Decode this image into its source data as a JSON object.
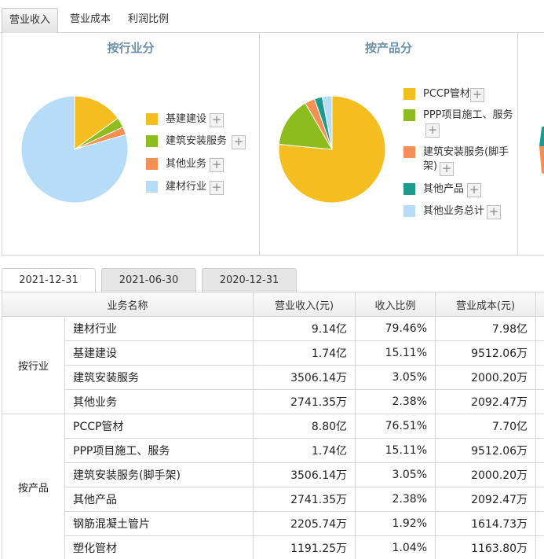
{
  "top_tabs": [
    "营业收入",
    "营业成本",
    "利润比例"
  ],
  "industry_chart": {
    "title": "按行业分",
    "items": [
      {
        "label": "基建建设",
        "value": 15.11,
        "color": "#f5be20"
      },
      {
        "label": "建筑安装服务",
        "value": 3.05,
        "color": "#8cbc1e"
      },
      {
        "label": "其他业务",
        "value": 2.38,
        "color": "#f59054"
      },
      {
        "label": "建材行业",
        "value": 79.46,
        "color": "#b6dcf7"
      }
    ]
  },
  "product_chart": {
    "title": "按产品分",
    "items": [
      {
        "label": "PCCP管材",
        "value": 76.51,
        "color": "#f5be20"
      },
      {
        "label": "PPP项目施工、服务",
        "value": 15.11,
        "color": "#8cbc1e"
      },
      {
        "label": "建筑安装服务(脚手架)",
        "value": 3.05,
        "color": "#f59054"
      },
      {
        "label": "其他产品",
        "value": 2.38,
        "color": "#1c9a8e"
      },
      {
        "label": "其他业务总计",
        "value": 2.95,
        "color": "#b6dcf7"
      }
    ]
  },
  "date_tabs": [
    "2021-12-31",
    "2021-06-30",
    "2020-12-31"
  ],
  "table": {
    "headers": [
      "业务名称",
      "营业收入(元)",
      "收入比例",
      "营业成本(元)"
    ],
    "groups": [
      {
        "label": "按行业",
        "rows": [
          {
            "name": "建材行业",
            "revenue": "9.14亿",
            "ratio": "79.46%",
            "cost": "7.98亿"
          },
          {
            "name": "基建建设",
            "revenue": "1.74亿",
            "ratio": "15.11%",
            "cost": "9512.06万"
          },
          {
            "name": "建筑安装服务",
            "revenue": "3506.14万",
            "ratio": "3.05%",
            "cost": "2000.20万"
          },
          {
            "name": "其他业务",
            "revenue": "2741.35万",
            "ratio": "2.38%",
            "cost": "2092.47万"
          }
        ]
      },
      {
        "label": "按产品",
        "rows": [
          {
            "name": "PCCP管材",
            "revenue": "8.80亿",
            "ratio": "76.51%",
            "cost": "7.70亿"
          },
          {
            "name": "PPP项目施工、服务",
            "revenue": "1.74亿",
            "ratio": "15.11%",
            "cost": "9512.06万"
          },
          {
            "name": "建筑安装服务(脚手架)",
            "revenue": "3506.14万",
            "ratio": "3.05%",
            "cost": "2000.20万"
          },
          {
            "name": "其他产品",
            "revenue": "2741.35万",
            "ratio": "2.38%",
            "cost": "2092.47万"
          },
          {
            "name": "钢筋混凝土管片",
            "revenue": "2205.74万",
            "ratio": "1.92%",
            "cost": "1614.73万"
          },
          {
            "name": "塑化管材",
            "revenue": "1191.25万",
            "ratio": "1.04%",
            "cost": "1163.80万"
          }
        ]
      }
    ]
  },
  "plus_icon": "+"
}
